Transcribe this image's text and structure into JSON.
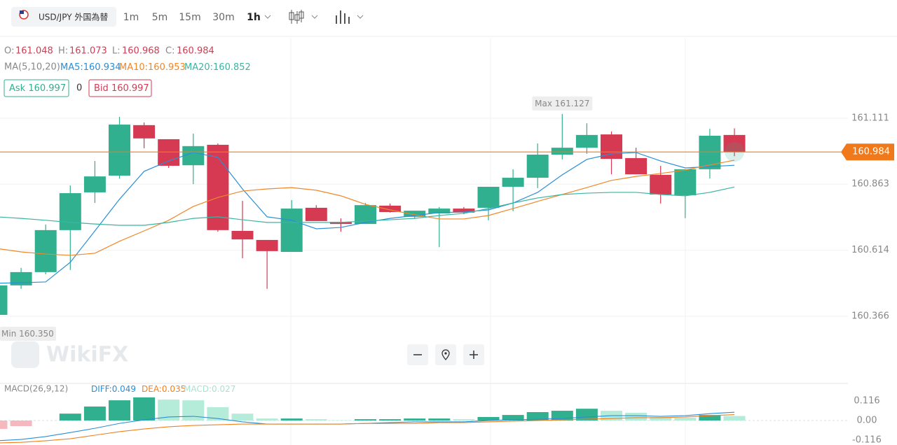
{
  "toolbar": {
    "symbol": "USD/JPY 外国為替",
    "intervals": [
      "1m",
      "5m",
      "15m",
      "30m",
      "1h"
    ],
    "active_interval": 4
  },
  "watermark": "WikiFX",
  "chart_data": {
    "type": "candlestick",
    "ohlc_labels": {
      "open": "O:",
      "high": "H:",
      "low": "L:",
      "close": "C:"
    },
    "candles": [
      {
        "open": 160.371,
        "high": 160.49,
        "low": 160.35,
        "close": 160.482
      },
      {
        "open": 160.482,
        "high": 160.548,
        "low": 160.469,
        "close": 160.532
      },
      {
        "open": 160.532,
        "high": 160.711,
        "low": 160.524,
        "close": 160.69
      },
      {
        "open": 160.69,
        "high": 160.858,
        "low": 160.54,
        "close": 160.829
      },
      {
        "open": 160.832,
        "high": 160.95,
        "low": 160.792,
        "close": 160.892
      },
      {
        "open": 160.895,
        "high": 161.116,
        "low": 160.884,
        "close": 161.087
      },
      {
        "open": 161.085,
        "high": 161.095,
        "low": 160.998,
        "close": 161.035
      },
      {
        "open": 161.032,
        "high": 161.032,
        "low": 160.924,
        "close": 160.932
      },
      {
        "open": 160.934,
        "high": 161.053,
        "low": 160.863,
        "close": 161.006
      },
      {
        "open": 161.011,
        "high": 161.016,
        "low": 160.684,
        "close": 160.69
      },
      {
        "open": 160.687,
        "high": 160.8,
        "low": 160.584,
        "close": 160.655
      },
      {
        "open": 160.653,
        "high": 160.653,
        "low": 160.469,
        "close": 160.611
      },
      {
        "open": 160.608,
        "high": 160.803,
        "low": 160.608,
        "close": 160.771
      },
      {
        "open": 160.774,
        "high": 160.784,
        "low": 160.724,
        "close": 160.724
      },
      {
        "open": 160.721,
        "high": 160.734,
        "low": 160.684,
        "close": 160.713
      },
      {
        "open": 160.713,
        "high": 160.792,
        "low": 160.713,
        "close": 160.784
      },
      {
        "open": 160.782,
        "high": 160.79,
        "low": 160.756,
        "close": 160.758
      },
      {
        "open": 160.74,
        "high": 160.763,
        "low": 160.732,
        "close": 160.763
      },
      {
        "open": 160.753,
        "high": 160.777,
        "low": 160.626,
        "close": 160.771
      },
      {
        "open": 160.771,
        "high": 160.777,
        "low": 160.75,
        "close": 160.756
      },
      {
        "open": 160.774,
        "high": 160.853,
        "low": 160.727,
        "close": 160.853
      },
      {
        "open": 160.853,
        "high": 160.919,
        "low": 160.761,
        "close": 160.887
      },
      {
        "open": 160.887,
        "high": 161.016,
        "low": 160.848,
        "close": 160.974
      },
      {
        "open": 160.974,
        "high": 161.127,
        "low": 160.956,
        "close": 161.0
      },
      {
        "open": 161.0,
        "high": 161.092,
        "low": 160.977,
        "close": 161.048
      },
      {
        "open": 161.05,
        "high": 161.061,
        "low": 160.9,
        "close": 160.958
      },
      {
        "open": 160.961,
        "high": 161.0,
        "low": 160.9,
        "close": 160.9
      },
      {
        "open": 160.898,
        "high": 160.932,
        "low": 160.79,
        "close": 160.824
      },
      {
        "open": 160.821,
        "high": 160.919,
        "low": 160.735,
        "close": 160.919
      },
      {
        "open": 160.919,
        "high": 161.071,
        "low": 160.884,
        "close": 161.045
      },
      {
        "open": 161.048,
        "high": 161.073,
        "low": 160.968,
        "close": 160.984
      }
    ],
    "colors": {
      "up": "#30b08e",
      "down": "#d63a52",
      "up_weak": "#b5ebd9",
      "down_weak": "#f6b8bf",
      "price_line": "#f07a1b"
    },
    "ma_label": "MA(5,10,20)",
    "ma": [
      {
        "name": "MA5:",
        "color": "#2b8fd6",
        "values": [
          160.49,
          160.492,
          160.495,
          160.569,
          160.687,
          160.806,
          160.911,
          160.95,
          160.982,
          160.964,
          160.845,
          160.74,
          160.727,
          160.695,
          160.7,
          160.719,
          160.734,
          160.745,
          160.756,
          160.758,
          160.766,
          160.792,
          160.832,
          160.898,
          160.956,
          160.977,
          160.982,
          160.95,
          160.924,
          160.929,
          160.934
        ]
      },
      {
        "name": "MA10:",
        "color": "#f0872a",
        "values": [
          160.621,
          160.608,
          160.6,
          160.595,
          160.603,
          160.648,
          160.687,
          160.727,
          160.779,
          160.813,
          160.837,
          160.845,
          160.85,
          160.84,
          160.819,
          160.787,
          160.766,
          160.748,
          160.732,
          160.732,
          160.745,
          160.771,
          160.798,
          160.824,
          160.85,
          160.877,
          160.892,
          160.903,
          160.916,
          160.935,
          160.953
        ]
      },
      {
        "name": "MA20:",
        "color": "#3bb5a3",
        "values": [
          160.74,
          160.734,
          160.727,
          160.719,
          160.713,
          160.708,
          160.708,
          160.719,
          160.734,
          160.74,
          160.729,
          160.719,
          160.719,
          160.719,
          160.719,
          160.724,
          160.729,
          160.734,
          160.745,
          160.753,
          160.771,
          160.792,
          160.811,
          160.824,
          160.829,
          160.832,
          160.832,
          160.824,
          160.819,
          160.832,
          160.852
        ]
      }
    ],
    "ask_label": "Ask",
    "ask": 160.997,
    "spread": 0,
    "bid_label": "Bid",
    "bid": 160.997,
    "last_price": 160.984,
    "max_label": "Max",
    "max": 161.127,
    "min_label": "Min",
    "min": {
      "value": 160.35,
      "label": "160.350"
    },
    "ylim": [
      160.121,
      161.411
    ],
    "yticks": [
      161.111,
      160.863,
      160.614,
      160.366
    ],
    "grid": true,
    "macd": {
      "type": "macd",
      "title": "MACD(26,9,12)",
      "series": [
        {
          "name": "DIFF:",
          "color": "#2b8fd6",
          "values": [
            -0.12,
            -0.112,
            -0.095,
            -0.071,
            -0.046,
            -0.017,
            0.004,
            0.021,
            0.025,
            0.012,
            -0.008,
            -0.021,
            -0.021,
            -0.021,
            -0.021,
            -0.017,
            -0.012,
            -0.008,
            -0.008,
            -0.008,
            0,
            0.004,
            0.008,
            0.012,
            0.021,
            0.029,
            0.029,
            0.025,
            0.029,
            0.041,
            0.049
          ]
        },
        {
          "name": "DEA:",
          "color": "#f0821e",
          "values": [
            -0.133,
            -0.129,
            -0.12,
            -0.108,
            -0.087,
            -0.066,
            -0.05,
            -0.037,
            -0.029,
            -0.025,
            -0.021,
            -0.021,
            -0.021,
            -0.021,
            -0.021,
            -0.017,
            -0.017,
            -0.017,
            -0.012,
            -0.012,
            -0.008,
            -0.004,
            0,
            0.004,
            0.008,
            0.012,
            0.017,
            0.017,
            0.021,
            0.029,
            0.035
          ]
        }
      ],
      "histogram": {
        "name": "MACD:",
        "color": "#a9e3cf",
        "values": [
          -0.05,
          -0.033,
          0,
          0.041,
          0.083,
          0.12,
          0.137,
          0.124,
          0.12,
          0.079,
          0.041,
          0.012,
          0.012,
          0.008,
          0.002,
          0.008,
          0.008,
          0.012,
          0.012,
          0.008,
          0.021,
          0.033,
          0.05,
          0.058,
          0.07,
          0.058,
          0.046,
          0.021,
          0.017,
          0.033,
          0.027
        ]
      },
      "ylim": [
        -0.145,
        0.22
      ],
      "yticks": [
        0.116,
        {
          "value": 0,
          "label": "0.00"
        },
        -0.116
      ]
    }
  }
}
